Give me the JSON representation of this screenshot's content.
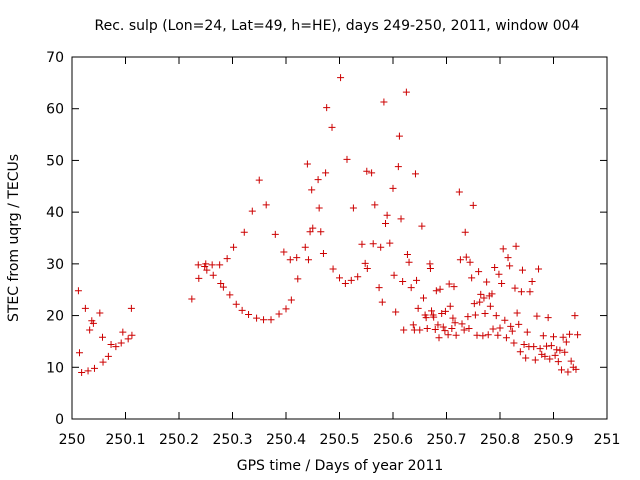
{
  "chart_data": {
    "type": "scatter",
    "title": "Rec. sulp (Lon=24, Lat=49, h=HE), days 249-250, 2011, window 004",
    "xlabel": "GPS time / Days of year 2011",
    "ylabel": "STEC from uqrg / TECUs",
    "xlim": [
      250,
      251
    ],
    "ylim": [
      0,
      70
    ],
    "x_ticks": [
      "250",
      "250.1",
      "250.2",
      "250.3",
      "250.4",
      "250.5",
      "250.6",
      "250.7",
      "250.8",
      "250.9",
      "251"
    ],
    "y_ticks": [
      "0",
      "10",
      "20",
      "30",
      "40",
      "50",
      "60",
      "70"
    ],
    "marker": "+",
    "color": "#cc0000",
    "grid": false,
    "series": [
      {
        "points": [
          [
            250.012,
            24.8
          ],
          [
            250.014,
            12.8
          ],
          [
            250.018,
            9.0
          ],
          [
            250.025,
            21.4
          ],
          [
            250.03,
            9.3
          ],
          [
            250.033,
            17.2
          ],
          [
            250.037,
            19.0
          ],
          [
            250.04,
            18.5
          ],
          [
            250.042,
            9.8
          ],
          [
            250.052,
            20.5
          ],
          [
            250.057,
            15.8
          ],
          [
            250.058,
            11.0
          ],
          [
            250.068,
            12.1
          ],
          [
            250.073,
            14.4
          ],
          [
            250.082,
            14.0
          ],
          [
            250.092,
            14.7
          ],
          [
            250.095,
            16.8
          ],
          [
            250.105,
            15.5
          ],
          [
            250.111,
            21.4
          ],
          [
            250.112,
            16.2
          ],
          [
            250.224,
            23.2
          ],
          [
            250.236,
            29.8
          ],
          [
            250.237,
            27.2
          ],
          [
            250.248,
            29.5
          ],
          [
            250.25,
            30.0
          ],
          [
            250.252,
            28.8
          ],
          [
            250.262,
            29.8
          ],
          [
            250.264,
            27.8
          ],
          [
            250.276,
            29.8
          ],
          [
            250.278,
            26.2
          ],
          [
            250.283,
            25.5
          ],
          [
            250.29,
            31.0
          ],
          [
            250.295,
            24.0
          ],
          [
            250.302,
            33.2
          ],
          [
            250.307,
            22.2
          ],
          [
            250.318,
            21.0
          ],
          [
            250.322,
            36.1
          ],
          [
            250.33,
            20.2
          ],
          [
            250.337,
            40.2
          ],
          [
            250.345,
            19.5
          ],
          [
            250.35,
            46.2
          ],
          [
            250.358,
            19.2
          ],
          [
            250.363,
            41.4
          ],
          [
            250.372,
            19.2
          ],
          [
            250.38,
            35.7
          ],
          [
            250.387,
            20.3
          ],
          [
            250.396,
            32.3
          ],
          [
            250.4,
            21.3
          ],
          [
            250.408,
            30.8
          ],
          [
            250.41,
            23.0
          ],
          [
            250.42,
            31.2
          ],
          [
            250.422,
            27.1
          ],
          [
            250.436,
            33.2
          ],
          [
            250.44,
            49.3
          ],
          [
            250.442,
            30.8
          ],
          [
            250.445,
            36.2
          ],
          [
            250.448,
            44.3
          ],
          [
            250.45,
            36.9
          ],
          [
            250.46,
            46.3
          ],
          [
            250.462,
            40.8
          ],
          [
            250.465,
            36.2
          ],
          [
            250.47,
            32.0
          ],
          [
            250.474,
            47.6
          ],
          [
            250.476,
            60.2
          ],
          [
            250.486,
            56.4
          ],
          [
            250.488,
            29.0
          ],
          [
            250.5,
            27.3
          ],
          [
            250.502,
            66.0
          ],
          [
            250.511,
            26.2
          ],
          [
            250.514,
            50.2
          ],
          [
            250.522,
            26.8
          ],
          [
            250.526,
            40.8
          ],
          [
            250.534,
            27.5
          ],
          [
            250.542,
            33.8
          ],
          [
            250.548,
            30.1
          ],
          [
            250.551,
            47.9
          ],
          [
            250.552,
            29.1
          ],
          [
            250.56,
            47.6
          ],
          [
            250.563,
            33.9
          ],
          [
            250.566,
            41.4
          ],
          [
            250.574,
            25.4
          ],
          [
            250.577,
            33.2
          ],
          [
            250.58,
            22.6
          ],
          [
            250.583,
            61.3
          ],
          [
            250.586,
            37.8
          ],
          [
            250.589,
            39.4
          ],
          [
            250.594,
            34.0
          ],
          [
            250.6,
            44.6
          ],
          [
            250.602,
            27.8
          ],
          [
            250.605,
            20.7
          ],
          [
            250.61,
            48.8
          ],
          [
            250.612,
            54.7
          ],
          [
            250.615,
            38.7
          ],
          [
            250.618,
            26.6
          ],
          [
            250.62,
            17.2
          ],
          [
            250.625,
            63.2
          ],
          [
            250.627,
            31.8
          ],
          [
            250.63,
            30.3
          ],
          [
            250.634,
            25.4
          ],
          [
            250.638,
            18.2
          ],
          [
            250.64,
            17.2
          ],
          [
            250.642,
            47.4
          ],
          [
            250.644,
            26.8
          ],
          [
            250.647,
            21.4
          ],
          [
            250.65,
            17.2
          ],
          [
            250.654,
            37.3
          ],
          [
            250.657,
            23.4
          ],
          [
            250.66,
            20.1
          ],
          [
            250.662,
            19.6
          ],
          [
            250.664,
            17.5
          ],
          [
            250.669,
            30.0
          ],
          [
            250.67,
            29.1
          ],
          [
            250.672,
            20.9
          ],
          [
            250.675,
            20.1
          ],
          [
            250.676,
            19.7
          ],
          [
            250.679,
            17.3
          ],
          [
            250.681,
            24.8
          ],
          [
            250.684,
            18.2
          ],
          [
            250.686,
            15.7
          ],
          [
            250.688,
            25.1
          ],
          [
            250.691,
            20.4
          ],
          [
            250.694,
            17.8
          ],
          [
            250.697,
            17.1
          ],
          [
            250.698,
            20.8
          ],
          [
            250.703,
            16.3
          ],
          [
            250.705,
            26.1
          ],
          [
            250.707,
            21.8
          ],
          [
            250.71,
            17.5
          ],
          [
            250.712,
            19.5
          ],
          [
            250.714,
            25.6
          ],
          [
            250.716,
            18.6
          ],
          [
            250.718,
            16.2
          ],
          [
            250.724,
            43.9
          ],
          [
            250.726,
            30.8
          ],
          [
            250.729,
            18.4
          ],
          [
            250.733,
            17.2
          ],
          [
            250.735,
            36.1
          ],
          [
            250.737,
            31.3
          ],
          [
            250.74,
            19.8
          ],
          [
            250.742,
            17.5
          ],
          [
            250.744,
            30.3
          ],
          [
            250.747,
            27.3
          ],
          [
            250.75,
            41.3
          ],
          [
            250.752,
            22.3
          ],
          [
            250.754,
            20.1
          ],
          [
            250.757,
            16.2
          ],
          [
            250.76,
            28.5
          ],
          [
            250.762,
            22.6
          ],
          [
            250.764,
            24.1
          ],
          [
            250.768,
            16.1
          ],
          [
            250.77,
            23.4
          ],
          [
            250.772,
            20.4
          ],
          [
            250.775,
            26.5
          ],
          [
            250.778,
            16.3
          ],
          [
            250.78,
            23.8
          ],
          [
            250.782,
            21.8
          ],
          [
            250.785,
            24.2
          ],
          [
            250.787,
            17.4
          ],
          [
            250.79,
            29.3
          ],
          [
            250.793,
            20.0
          ],
          [
            250.796,
            16.2
          ],
          [
            250.798,
            28.0
          ],
          [
            250.8,
            17.6
          ],
          [
            250.803,
            26.2
          ],
          [
            250.806,
            32.9
          ],
          [
            250.809,
            19.1
          ],
          [
            250.812,
            15.7
          ],
          [
            250.815,
            31.2
          ],
          [
            250.818,
            29.6
          ],
          [
            250.82,
            17.9
          ],
          [
            250.823,
            17.0
          ],
          [
            250.826,
            14.7
          ],
          [
            250.828,
            25.3
          ],
          [
            250.83,
            33.4
          ],
          [
            250.832,
            20.5
          ],
          [
            250.835,
            18.3
          ],
          [
            250.838,
            13.0
          ],
          [
            250.84,
            24.6
          ],
          [
            250.842,
            28.8
          ],
          [
            250.845,
            14.4
          ],
          [
            250.848,
            11.8
          ],
          [
            250.851,
            16.8
          ],
          [
            250.854,
            14.0
          ],
          [
            250.856,
            24.6
          ],
          [
            250.86,
            26.6
          ],
          [
            250.863,
            14.0
          ],
          [
            250.866,
            11.4
          ],
          [
            250.869,
            19.9
          ],
          [
            250.872,
            29.0
          ],
          [
            250.875,
            13.6
          ],
          [
            250.878,
            12.5
          ],
          [
            250.881,
            16.1
          ],
          [
            250.884,
            12.1
          ],
          [
            250.887,
            14.1
          ],
          [
            250.89,
            19.6
          ],
          [
            250.893,
            11.6
          ],
          [
            250.896,
            14.2
          ],
          [
            250.9,
            15.9
          ],
          [
            250.903,
            12.3
          ],
          [
            250.906,
            13.4
          ],
          [
            250.909,
            11.1
          ],
          [
            250.912,
            13.3
          ],
          [
            250.915,
            9.5
          ],
          [
            250.918,
            15.8
          ],
          [
            250.921,
            12.9
          ],
          [
            250.924,
            14.9
          ],
          [
            250.927,
            9.1
          ],
          [
            250.93,
            16.4
          ],
          [
            250.933,
            11.2
          ],
          [
            250.937,
            10.0
          ],
          [
            250.94,
            20.0
          ],
          [
            250.942,
            9.6
          ],
          [
            250.945,
            16.3
          ]
        ]
      }
    ]
  }
}
